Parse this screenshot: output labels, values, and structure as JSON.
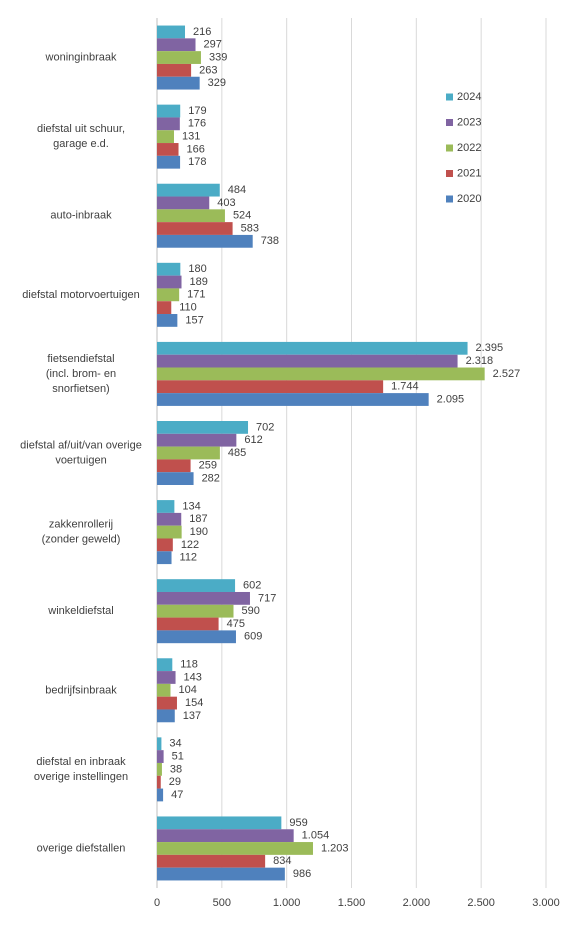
{
  "chart_data": {
    "type": "bar",
    "orientation": "horizontal",
    "grid": true,
    "legend": "right",
    "categories": [
      "woninginbraak",
      "diefstal uit schuur,\ngarage e.d.",
      "auto-inbraak",
      "diefstal motorvoertuigen",
      "fietsendiefstal\n(incl. brom- en\nsnorfietsen)",
      "diefstal af/uit/van overige\nvoertuigen",
      "zakkenrollerij\n(zonder geweld)",
      "winkeldiefstal",
      "bedrijfsinbraak",
      "diefstal en inbraak\noverige instellingen",
      "overige diefstallen"
    ],
    "series": [
      {
        "name": "2024",
        "color": "#4bacc6",
        "values": [
          216,
          179,
          484,
          180,
          2395,
          702,
          134,
          602,
          118,
          34,
          959
        ],
        "value_labels": [
          "216",
          "179",
          "484",
          "180",
          "2.395",
          "702",
          "134",
          "602",
          "118",
          "34",
          "959"
        ]
      },
      {
        "name": "2023",
        "color": "#8064a2",
        "values": [
          297,
          176,
          403,
          189,
          2318,
          612,
          187,
          717,
          143,
          51,
          1054
        ],
        "value_labels": [
          "297",
          "176",
          "403",
          "189",
          "2.318",
          "612",
          "187",
          "717",
          "143",
          "51",
          "1.054"
        ]
      },
      {
        "name": "2022",
        "color": "#9bbb59",
        "values": [
          339,
          131,
          524,
          171,
          2527,
          485,
          190,
          590,
          104,
          38,
          1203
        ],
        "value_labels": [
          "339",
          "131",
          "524",
          "171",
          "2.527",
          "485",
          "190",
          "590",
          "104",
          "38",
          "1.203"
        ]
      },
      {
        "name": "2021",
        "color": "#c0504d",
        "values": [
          263,
          166,
          583,
          110,
          1744,
          259,
          122,
          475,
          154,
          29,
          834
        ],
        "value_labels": [
          "263",
          "166",
          "583",
          "110",
          "1.744",
          "259",
          "122",
          "475",
          "154",
          "29",
          "834"
        ]
      },
      {
        "name": "2020",
        "color": "#4f81bd",
        "values": [
          329,
          178,
          738,
          157,
          2095,
          282,
          112,
          609,
          137,
          47,
          986
        ],
        "value_labels": [
          "329",
          "178",
          "738",
          "157",
          "2.095",
          "282",
          "112",
          "609",
          "137",
          "47",
          "986"
        ]
      }
    ],
    "xlim": [
      0,
      3000
    ],
    "xticks": [
      0,
      500,
      {
        "value": 1000,
        "label": "1.000"
      },
      {
        "value": 1500,
        "label": "1.500"
      },
      {
        "value": 2000,
        "label": "2.000"
      },
      {
        "value": 2500,
        "label": "2.500"
      },
      {
        "value": 3000,
        "label": "3.000"
      }
    ]
  }
}
